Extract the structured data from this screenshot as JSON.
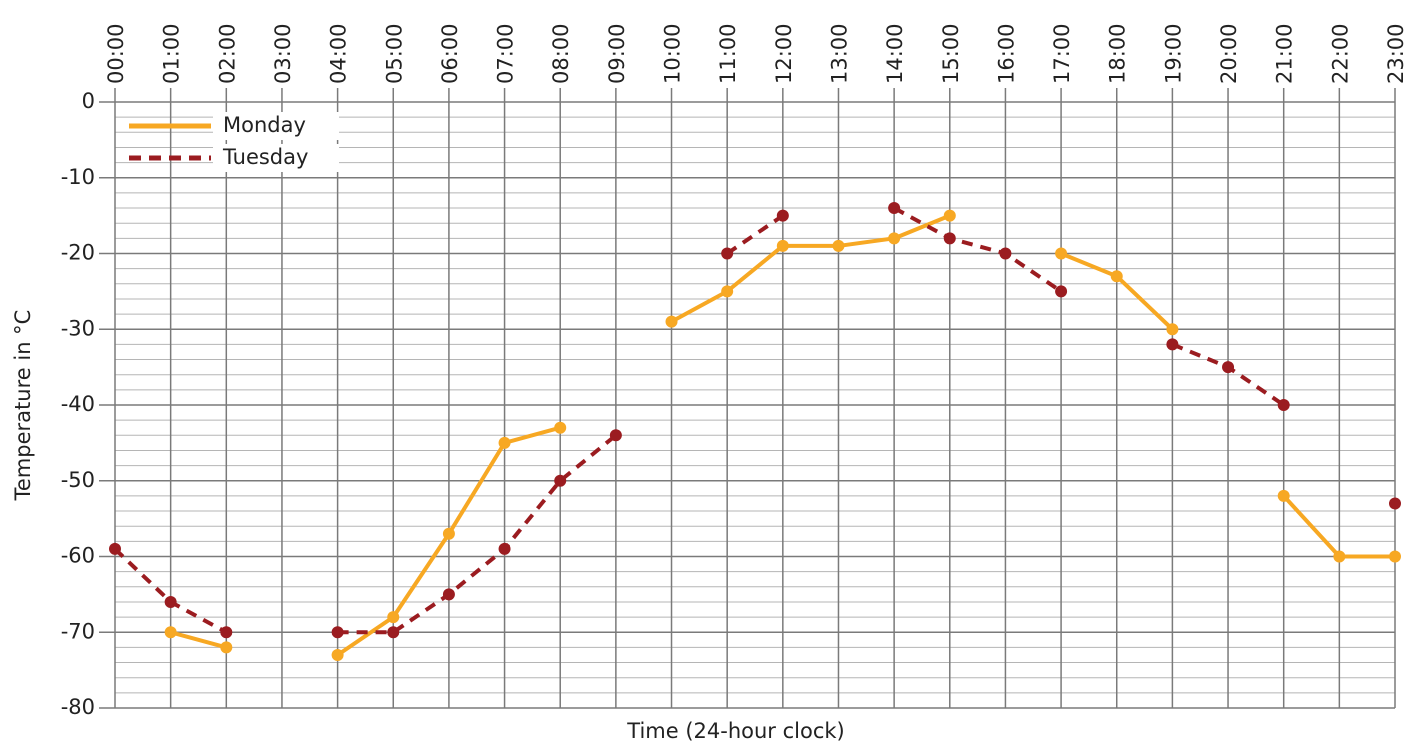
{
  "chart_data": {
    "type": "line",
    "x_label": "Time (24-hour clock)",
    "y_label": "Temperature in °C",
    "categories": [
      "00:00",
      "01:00",
      "02:00",
      "03:00",
      "04:00",
      "05:00",
      "06:00",
      "07:00",
      "08:00",
      "09:00",
      "10:00",
      "11:00",
      "12:00",
      "13:00",
      "14:00",
      "15:00",
      "16:00",
      "17:00",
      "18:00",
      "19:00",
      "20:00",
      "21:00",
      "22:00",
      "23:00"
    ],
    "series": [
      {
        "name": "Monday",
        "color": "#f7a823",
        "dash": false,
        "values": [
          null,
          -70,
          -72,
          null,
          -73,
          -68,
          -57,
          -45,
          -43,
          null,
          -29,
          -25,
          -19,
          -19,
          -18,
          -15,
          null,
          -20,
          -23,
          -30,
          null,
          -52,
          -60,
          -60
        ]
      },
      {
        "name": "Tuesday",
        "color": "#9b1c20",
        "dash": true,
        "values": [
          -59,
          -66,
          -70,
          null,
          -70,
          -70,
          -65,
          -59,
          -50,
          -44,
          null,
          -20,
          -15,
          null,
          -14,
          -18,
          -20,
          -25,
          null,
          -32,
          -35,
          -40,
          null,
          -53
        ]
      }
    ],
    "ylim": [
      -80,
      0
    ],
    "yticks": [
      -80,
      -70,
      -60,
      -50,
      -40,
      -30,
      -20,
      -10,
      0
    ],
    "grid": true,
    "minor_grid_step": 2,
    "legend": "upper left"
  }
}
